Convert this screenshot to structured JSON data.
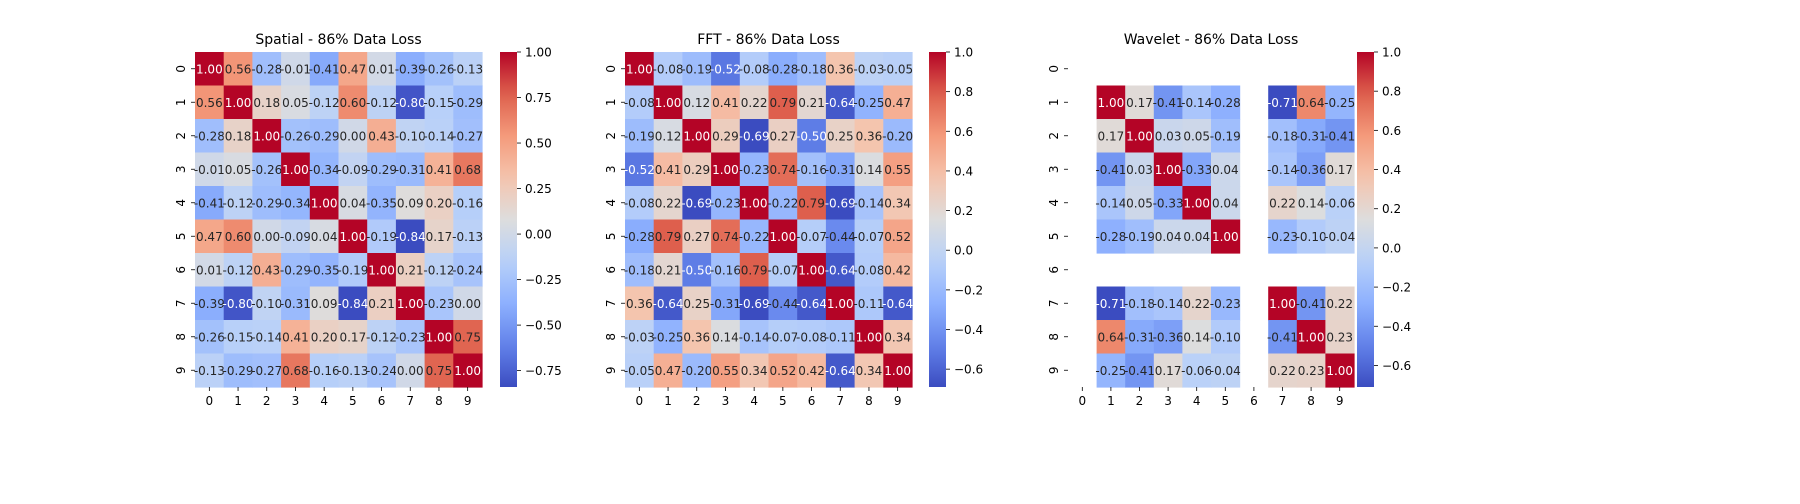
{
  "chart_data": [
    {
      "type": "heatmap",
      "title": "Spatial - 86% Data Loss",
      "x_tick_labels": [
        "0",
        "1",
        "2",
        "3",
        "4",
        "5",
        "6",
        "7",
        "8",
        "9"
      ],
      "y_tick_labels": [
        "0",
        "1",
        "2",
        "3",
        "4",
        "5",
        "6",
        "7",
        "8",
        "9"
      ],
      "colormap": "coolwarm",
      "vmin": -0.84,
      "vmax": 1.0,
      "colorbar_ticks": [
        1.0,
        0.75,
        0.5,
        0.25,
        0.0,
        -0.25,
        -0.5,
        -0.75
      ],
      "colorbar_tick_labels": [
        "1.00",
        "0.75",
        "0.50",
        "0.25",
        "0.00",
        "−0.25",
        "−0.50",
        "−0.75"
      ],
      "values": [
        [
          1.0,
          0.56,
          -0.28,
          -0.01,
          -0.41,
          0.47,
          0.01,
          -0.39,
          -0.26,
          -0.13
        ],
        [
          0.56,
          1.0,
          0.18,
          0.05,
          -0.12,
          0.6,
          -0.12,
          -0.8,
          -0.15,
          -0.29
        ],
        [
          -0.28,
          0.18,
          1.0,
          -0.26,
          -0.29,
          -0.0,
          0.43,
          -0.1,
          -0.14,
          -0.27
        ],
        [
          -0.01,
          0.05,
          -0.26,
          1.0,
          -0.34,
          -0.09,
          -0.29,
          -0.31,
          0.41,
          0.68
        ],
        [
          -0.41,
          -0.12,
          -0.29,
          -0.34,
          1.0,
          0.04,
          -0.35,
          0.09,
          0.2,
          -0.16
        ],
        [
          0.47,
          0.6,
          -0.0,
          -0.09,
          0.04,
          1.0,
          -0.19,
          -0.84,
          0.17,
          -0.13
        ],
        [
          0.01,
          -0.12,
          0.43,
          -0.29,
          -0.35,
          -0.19,
          1.0,
          0.21,
          -0.12,
          -0.24
        ],
        [
          -0.39,
          -0.8,
          -0.1,
          -0.31,
          0.09,
          -0.84,
          0.21,
          1.0,
          -0.23,
          -0.0
        ],
        [
          -0.26,
          -0.15,
          -0.14,
          0.41,
          0.2,
          0.17,
          -0.12,
          -0.23,
          1.0,
          0.75
        ],
        [
          -0.13,
          -0.29,
          -0.27,
          0.68,
          -0.16,
          -0.13,
          -0.24,
          -0.0,
          0.75,
          1.0
        ]
      ]
    },
    {
      "type": "heatmap",
      "title": "FFT - 86% Data Loss",
      "x_tick_labels": [
        "0",
        "1",
        "2",
        "3",
        "4",
        "5",
        "6",
        "7",
        "8",
        "9"
      ],
      "y_tick_labels": [
        "0",
        "1",
        "2",
        "3",
        "4",
        "5",
        "6",
        "7",
        "8",
        "9"
      ],
      "colormap": "coolwarm",
      "vmin": -0.69,
      "vmax": 1.0,
      "colorbar_ticks": [
        1.0,
        0.8,
        0.6,
        0.4,
        0.2,
        0.0,
        -0.2,
        -0.4,
        -0.6
      ],
      "colorbar_tick_labels": [
        "1.0",
        "0.8",
        "0.6",
        "0.4",
        "0.2",
        "0.0",
        "−0.2",
        "−0.4",
        "−0.6"
      ],
      "values": [
        [
          1.0,
          -0.08,
          -0.19,
          -0.52,
          -0.08,
          -0.28,
          -0.18,
          0.36,
          -0.03,
          -0.05
        ],
        [
          -0.08,
          1.0,
          0.12,
          0.41,
          0.22,
          0.79,
          0.21,
          -0.64,
          -0.25,
          0.47
        ],
        [
          -0.19,
          0.12,
          1.0,
          0.29,
          -0.69,
          0.27,
          -0.5,
          0.25,
          0.36,
          -0.2
        ],
        [
          -0.52,
          0.41,
          0.29,
          1.0,
          -0.23,
          0.74,
          -0.16,
          -0.31,
          0.14,
          0.55
        ],
        [
          -0.08,
          0.22,
          -0.69,
          -0.23,
          1.0,
          -0.22,
          0.79,
          -0.69,
          -0.14,
          0.34
        ],
        [
          -0.28,
          0.79,
          0.27,
          0.74,
          -0.22,
          1.0,
          -0.07,
          -0.44,
          -0.07,
          0.52
        ],
        [
          -0.18,
          0.21,
          -0.5,
          -0.16,
          0.79,
          -0.07,
          1.0,
          -0.64,
          -0.08,
          0.42
        ],
        [
          0.36,
          -0.64,
          0.25,
          -0.31,
          -0.69,
          -0.44,
          -0.64,
          1.0,
          -0.11,
          -0.64
        ],
        [
          -0.03,
          -0.25,
          0.36,
          0.14,
          -0.14,
          -0.07,
          -0.08,
          -0.11,
          1.0,
          0.34
        ],
        [
          -0.05,
          0.47,
          -0.2,
          0.55,
          0.34,
          0.52,
          0.42,
          -0.64,
          0.34,
          1.0
        ]
      ]
    },
    {
      "type": "heatmap",
      "title": "Wavelet - 86% Data Loss",
      "x_tick_labels": [
        "0",
        "1",
        "2",
        "3",
        "4",
        "5",
        "6",
        "7",
        "8",
        "9"
      ],
      "y_tick_labels": [
        "0",
        "1",
        "2",
        "3",
        "4",
        "5",
        "6",
        "7",
        "8",
        "9"
      ],
      "colormap": "coolwarm",
      "vmin": -0.71,
      "vmax": 1.0,
      "colorbar_ticks": [
        1.0,
        0.8,
        0.6,
        0.4,
        0.2,
        0.0,
        -0.2,
        -0.4,
        -0.6
      ],
      "colorbar_tick_labels": [
        "1.0",
        "0.8",
        "0.6",
        "0.4",
        "0.2",
        "0.0",
        "−0.2",
        "−0.4",
        "−0.6"
      ],
      "values": [
        [
          null,
          null,
          null,
          null,
          null,
          null,
          null,
          null,
          null,
          null
        ],
        [
          null,
          1.0,
          0.17,
          -0.41,
          -0.14,
          -0.28,
          null,
          -0.71,
          0.64,
          -0.25
        ],
        [
          null,
          0.17,
          1.0,
          0.03,
          0.05,
          -0.19,
          null,
          -0.18,
          -0.31,
          -0.41
        ],
        [
          null,
          -0.41,
          0.03,
          1.0,
          -0.33,
          0.04,
          null,
          -0.14,
          -0.36,
          0.17
        ],
        [
          null,
          -0.14,
          0.05,
          -0.33,
          1.0,
          0.04,
          null,
          0.22,
          0.14,
          -0.06
        ],
        [
          null,
          -0.28,
          -0.19,
          0.04,
          0.04,
          1.0,
          null,
          -0.23,
          -0.1,
          -0.04
        ],
        [
          null,
          null,
          null,
          null,
          null,
          null,
          null,
          null,
          null,
          null
        ],
        [
          null,
          -0.71,
          -0.18,
          -0.14,
          0.22,
          -0.23,
          null,
          1.0,
          -0.41,
          0.22
        ],
        [
          null,
          0.64,
          -0.31,
          -0.36,
          0.14,
          -0.1,
          null,
          -0.41,
          1.0,
          0.23
        ],
        [
          null,
          -0.25,
          -0.41,
          0.17,
          -0.06,
          -0.04,
          null,
          0.22,
          0.23,
          1.0
        ]
      ]
    }
  ]
}
